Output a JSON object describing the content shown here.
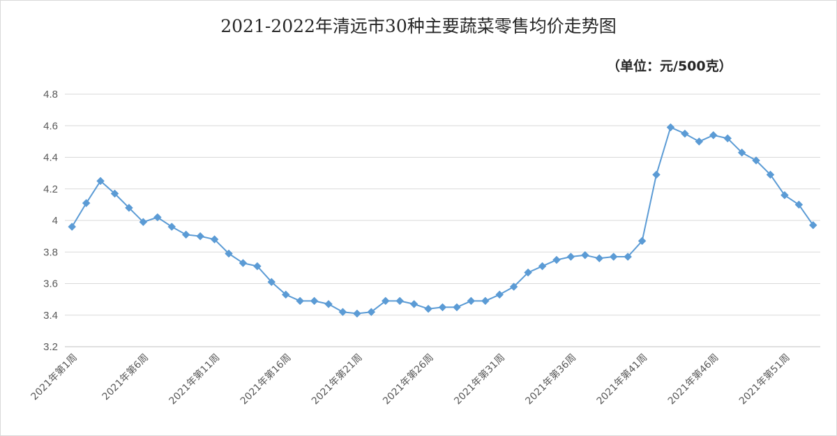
{
  "chart_data": {
    "type": "line",
    "title": "2021-2022年清远市30种主要蔬菜零售均价走势图",
    "unit_note": "（单位：元/500克）",
    "xlabel": "",
    "ylabel": "",
    "ylim": [
      3.2,
      4.8
    ],
    "yticks": [
      "3.2",
      "3.4",
      "3.6",
      "3.8",
      "4",
      "4.2",
      "4.4",
      "4.6",
      "4.8"
    ],
    "grid": true,
    "legend": "none",
    "color": "#5b9bd5",
    "x_tick_labels": [
      {
        "index": 0,
        "label": "2021年第1周"
      },
      {
        "index": 5,
        "label": "2021年第6周"
      },
      {
        "index": 10,
        "label": "2021年第11周"
      },
      {
        "index": 15,
        "label": "2021年第16周"
      },
      {
        "index": 20,
        "label": "2021年第21周"
      },
      {
        "index": 25,
        "label": "2021年第26周"
      },
      {
        "index": 30,
        "label": "2021年第31周"
      },
      {
        "index": 35,
        "label": "2021年第36周"
      },
      {
        "index": 40,
        "label": "2021年第41周"
      },
      {
        "index": 45,
        "label": "2021年第46周"
      },
      {
        "index": 50,
        "label": "2021年第51周"
      }
    ],
    "values": [
      3.96,
      4.11,
      4.25,
      4.17,
      4.08,
      3.99,
      4.02,
      3.96,
      3.91,
      3.9,
      3.88,
      3.79,
      3.73,
      3.71,
      3.61,
      3.53,
      3.49,
      3.49,
      3.47,
      3.42,
      3.41,
      3.42,
      3.49,
      3.49,
      3.47,
      3.44,
      3.45,
      3.45,
      3.49,
      3.49,
      3.53,
      3.58,
      3.67,
      3.71,
      3.75,
      3.77,
      3.78,
      3.76,
      3.77,
      3.77,
      3.87,
      4.29,
      4.59,
      4.55,
      4.5,
      4.54,
      4.52,
      4.43,
      4.38,
      4.29,
      4.16,
      4.1,
      3.97
    ]
  }
}
